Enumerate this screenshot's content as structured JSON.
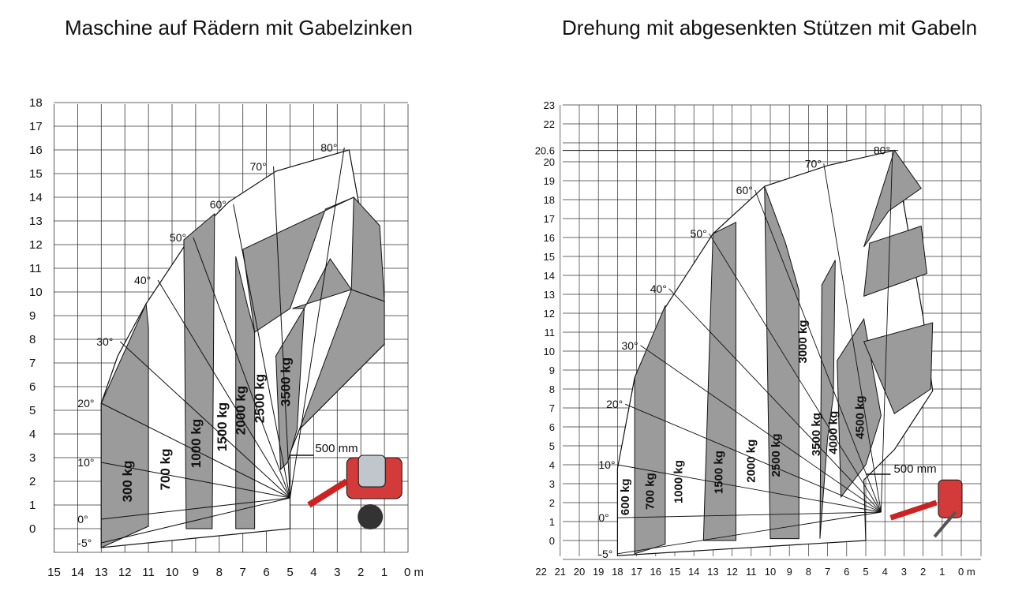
{
  "chart_data": [
    {
      "type": "area",
      "title": "Maschine auf Rädern mit Gabelzinken",
      "x_unit": "m",
      "x_ticks": [
        "15",
        "14",
        "13",
        "12",
        "11",
        "10",
        "9",
        "8",
        "7",
        "6",
        "5",
        "4",
        "3",
        "2",
        "1",
        "0 m"
      ],
      "y_ticks": [
        "0",
        "1",
        "2",
        "3",
        "4",
        "5",
        "6",
        "7",
        "8",
        "9",
        "10",
        "11",
        "12",
        "13",
        "14",
        "15",
        "16",
        "17",
        "18"
      ],
      "xlim": [
        15,
        0
      ],
      "ylim": [
        -0.5,
        18
      ],
      "grid": true,
      "boom_angles": [
        {
          "label": "-5°",
          "x": 13,
          "y": -0.6
        },
        {
          "label": "0°",
          "x": 13,
          "y": 0.4
        },
        {
          "label": "10°",
          "x": 13,
          "y": 2.8
        },
        {
          "label": "20°",
          "x": 13,
          "y": 5.3
        },
        {
          "label": "30°",
          "x": 12.2,
          "y": 7.9
        },
        {
          "label": "40°",
          "x": 10.6,
          "y": 10.5
        },
        {
          "label": "50°",
          "x": 9.1,
          "y": 12.3
        },
        {
          "label": "60°",
          "x": 7.4,
          "y": 13.7
        },
        {
          "label": "70°",
          "x": 5.7,
          "y": 15.3
        },
        {
          "label": "80°",
          "x": 2.7,
          "y": 16.1
        }
      ],
      "load_zones": [
        {
          "label": "300 kg",
          "x_from": 13,
          "x_to": 11
        },
        {
          "label": "700 kg",
          "x_from": 11,
          "x_to": 9.5
        },
        {
          "label": "1000 kg",
          "x_from": 9.5,
          "x_to": 8.3
        },
        {
          "label": "1500 kg",
          "x_from": 8.3,
          "x_to": 7.3
        },
        {
          "label": "2000 kg",
          "x_from": 7.3,
          "x_to": 6.5
        },
        {
          "label": "2500 kg",
          "x_from": 6.5,
          "x_to": 5.5
        },
        {
          "label": "3500 kg",
          "x_from": 5.5,
          "x_to": 4.7
        }
      ],
      "annotation": "500 mm"
    },
    {
      "type": "area",
      "title": "Drehung mit abgesenkten Stützen mit Gabeln",
      "x_unit": "m",
      "x_ticks": [
        "22",
        "21",
        "20",
        "19",
        "18",
        "17",
        "16",
        "15",
        "14",
        "13",
        "12",
        "11",
        "10",
        "9",
        "8",
        "7",
        "6",
        "5",
        "4",
        "3",
        "2",
        "1",
        "0 m"
      ],
      "y_ticks": [
        "0",
        "1",
        "2",
        "3",
        "4",
        "5",
        "6",
        "7",
        "8",
        "9",
        "10",
        "11",
        "12",
        "13",
        "14",
        "15",
        "16",
        "17",
        "18",
        "19",
        "20",
        "20.6",
        "22",
        "23"
      ],
      "xlim": [
        22,
        0
      ],
      "ylim": [
        -0.5,
        23
      ],
      "max_height": 20.6,
      "grid": true,
      "boom_angles": [
        {
          "label": "-5°",
          "x": 18,
          "y": -0.7
        },
        {
          "label": "0°",
          "x": 18,
          "y": 1.2
        },
        {
          "label": "10°",
          "x": 18,
          "y": 4
        },
        {
          "label": "20°",
          "x": 17.6,
          "y": 7.2
        },
        {
          "label": "30°",
          "x": 16.8,
          "y": 10.3
        },
        {
          "label": "40°",
          "x": 15.3,
          "y": 13.3
        },
        {
          "label": "50°",
          "x": 13.2,
          "y": 16.2
        },
        {
          "label": "60°",
          "x": 10.8,
          "y": 18.5
        },
        {
          "label": "70°",
          "x": 7.2,
          "y": 19.9
        },
        {
          "label": "80°",
          "x": 3.6,
          "y": 20.6
        }
      ],
      "load_zones": [
        {
          "label": "600 kg",
          "x_from": 18,
          "x_to": 17
        },
        {
          "label": "700 kg",
          "x_from": 17,
          "x_to": 15.5
        },
        {
          "label": "1000 kg",
          "x_from": 15.5,
          "x_to": 13.5
        },
        {
          "label": "1500 kg",
          "x_from": 13.5,
          "x_to": 11.5
        },
        {
          "label": "2000 kg",
          "x_from": 11.5,
          "x_to": 10
        },
        {
          "label": "2500 kg",
          "x_from": 10,
          "x_to": 8.5
        },
        {
          "label": "3000 kg",
          "x_from": 8.5,
          "x_to": 7.5
        },
        {
          "label": "3500 kg",
          "x_from": 7.5,
          "x_to": 6.8
        },
        {
          "label": "4000 kg",
          "x_from": 6.8,
          "x_to": 6
        },
        {
          "label": "4500 kg",
          "x_from": 6,
          "x_to": 4.5
        }
      ],
      "annotation": "500 mm"
    }
  ]
}
